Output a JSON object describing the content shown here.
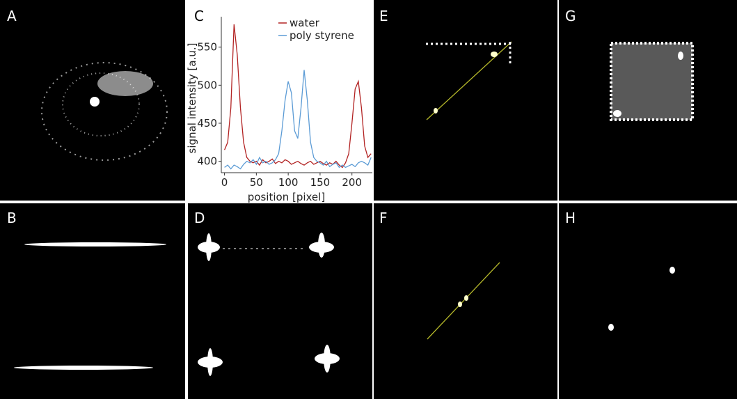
{
  "panels": {
    "labels": [
      "A",
      "B",
      "C",
      "D",
      "E",
      "F",
      "G",
      "H"
    ]
  },
  "chart_data": {
    "type": "line",
    "xlabel": "position [pixel]",
    "ylabel": "signal intensity [a.u.]",
    "x": [
      0,
      5,
      10,
      15,
      20,
      25,
      30,
      35,
      40,
      45,
      50,
      55,
      60,
      65,
      70,
      75,
      80,
      85,
      90,
      95,
      100,
      105,
      110,
      115,
      120,
      125,
      130,
      135,
      140,
      145,
      150,
      155,
      160,
      165,
      170,
      175,
      180,
      185,
      190,
      195,
      200,
      205,
      210,
      215,
      220,
      225,
      230
    ],
    "series": [
      {
        "name": "water",
        "color": "#b22222",
        "values": [
          415,
          425,
          470,
          580,
          540,
          470,
          425,
          405,
          400,
          398,
          400,
          395,
          402,
          398,
          400,
          403,
          397,
          400,
          398,
          402,
          400,
          396,
          398,
          400,
          397,
          395,
          398,
          400,
          396,
          398,
          400,
          397,
          395,
          398,
          396,
          400,
          395,
          392,
          398,
          410,
          450,
          495,
          505,
          470,
          420,
          405,
          410
        ]
      },
      {
        "name": "poly styrene",
        "color": "#5b9bd5",
        "values": [
          392,
          395,
          390,
          395,
          393,
          390,
          396,
          400,
          398,
          402,
          396,
          405,
          398,
          400,
          396,
          398,
          402,
          410,
          440,
          480,
          505,
          490,
          440,
          430,
          470,
          520,
          480,
          425,
          405,
          400,
          398,
          395,
          400,
          393,
          396,
          398,
          392,
          395,
          392,
          394,
          396,
          393,
          398,
          400,
          398,
          395,
          405
        ]
      }
    ],
    "xlim": [
      -5,
      232
    ],
    "ylim": [
      385,
      590
    ],
    "xticks": [
      0,
      50,
      100,
      150,
      200
    ],
    "yticks": [
      400,
      450,
      500,
      550
    ],
    "legend": "upper right"
  }
}
